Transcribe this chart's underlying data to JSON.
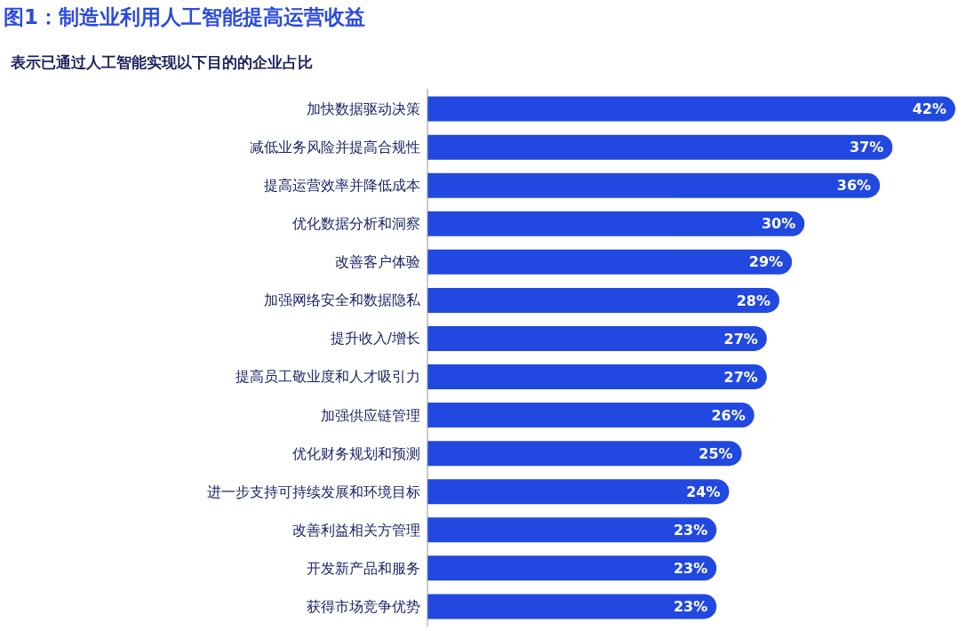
{
  "chart_data": {
    "type": "bar",
    "title": "图1：制造业利用人工智能提高运营收益",
    "subtitle": "表示已通过人工智能实现以下目的的企业占比",
    "orientation": "horizontal",
    "categories": [
      "加快数据驱动决策",
      "减低业务风险并提高合规性",
      "提高运营效率并降低成本",
      "优化数据分析和洞察",
      "改善客户体验",
      "加强网络安全和数据隐私",
      "提升收入/增长",
      "提高员工敬业度和人才吸引力",
      "加强供应链管理",
      "优化财务规划和预测",
      "进一步支持可持续发展和环境目标",
      "改善利益相关方管理",
      "开发新产品和服务",
      "获得市场竞争优势"
    ],
    "values": [
      42,
      37,
      36,
      30,
      29,
      28,
      27,
      27,
      26,
      25,
      24,
      23,
      23,
      23
    ],
    "value_labels": [
      "42%",
      "37%",
      "36%",
      "30%",
      "29%",
      "28%",
      "27%",
      "27%",
      "26%",
      "25%",
      "24%",
      "23%",
      "23%",
      "23%"
    ],
    "color": "#2148e0",
    "grid": false
  }
}
